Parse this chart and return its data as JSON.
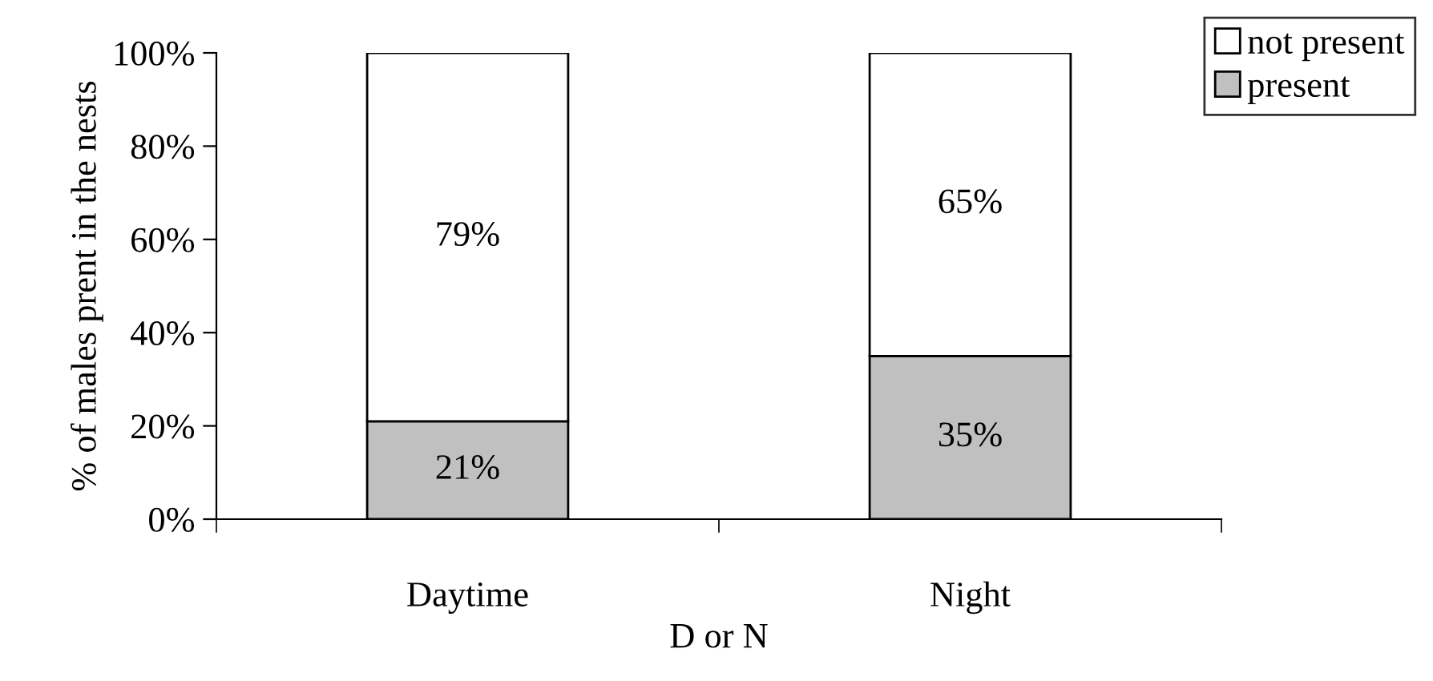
{
  "chart_data": {
    "type": "bar",
    "stacked": true,
    "ylabel": "% of males prent in the nests",
    "xlabel": "D or N",
    "categories": [
      "Daytime",
      "Night"
    ],
    "series": [
      {
        "name": "present",
        "color": "#c0c0c0",
        "values": [
          21,
          35
        ],
        "value_labels": [
          "21%",
          "35%"
        ]
      },
      {
        "name": "not present",
        "color": "#ffffff",
        "values": [
          79,
          65
        ],
        "value_labels": [
          "79%",
          "65%"
        ]
      }
    ],
    "ylim": [
      0,
      100
    ],
    "yticks": [
      {
        "value": 0,
        "label": "0%"
      },
      {
        "value": 20,
        "label": "20%"
      },
      {
        "value": 40,
        "label": "40%"
      },
      {
        "value": 60,
        "label": "60%"
      },
      {
        "value": 80,
        "label": "80%"
      },
      {
        "value": 100,
        "label": "100%"
      }
    ],
    "grid": false,
    "legend": "top right"
  }
}
